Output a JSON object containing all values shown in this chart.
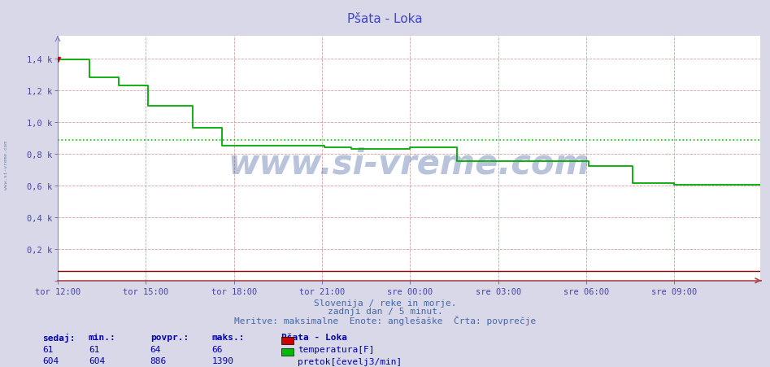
{
  "title": "Pšata - Loka",
  "title_color": "#4444cc",
  "bg_color": "#d8d8e8",
  "plot_bg_color": "#ffffff",
  "grid_color_dashed": "#cc8888",
  "grid_color_v": "#cc8888",
  "axis_color": "#8888cc",
  "tick_color": "#4444aa",
  "border_color": "#8888cc",
  "watermark": "www.si-vreme.com",
  "watermark_color": "#1a3a8a",
  "subtitle1": "Slovenija / reke in morje.",
  "subtitle2": "zadnji dan / 5 minut.",
  "subtitle3": "Meritve: maksimalne  Enote: anglešaške  Črta: povprečje",
  "subtitle_color": "#4466aa",
  "ylim": [
    0,
    1540
  ],
  "yticks": [
    0,
    200,
    400,
    600,
    800,
    1000,
    1200,
    1400
  ],
  "ytick_labels": [
    "",
    "0,2 k",
    "0,4 k",
    "0,6 k",
    "0,8 k",
    "1,0 k",
    "1,2 k",
    "1,4 k"
  ],
  "xtick_labels": [
    "tor 12:00",
    "tor 15:00",
    "tor 18:00",
    "tor 21:00",
    "sre 00:00",
    "sre 03:00",
    "sre 06:00",
    "sre 09:00"
  ],
  "xtick_positions": [
    0,
    36,
    72,
    108,
    144,
    180,
    216,
    252
  ],
  "total_points": 288,
  "avg_line_value": 886,
  "avg_line_color": "#00cc00",
  "temp_color": "#880000",
  "flow_color": "#00aa00",
  "flow_data": [
    [
      0,
      1390
    ],
    [
      13,
      1390
    ],
    [
      13,
      1280
    ],
    [
      25,
      1280
    ],
    [
      25,
      1230
    ],
    [
      37,
      1230
    ],
    [
      37,
      1100
    ],
    [
      55,
      1100
    ],
    [
      55,
      960
    ],
    [
      67,
      960
    ],
    [
      67,
      850
    ],
    [
      109,
      850
    ],
    [
      109,
      840
    ],
    [
      115,
      840
    ],
    [
      115,
      840
    ],
    [
      120,
      840
    ],
    [
      120,
      830
    ],
    [
      144,
      830
    ],
    [
      144,
      840
    ],
    [
      163,
      840
    ],
    [
      163,
      750
    ],
    [
      217,
      750
    ],
    [
      217,
      720
    ],
    [
      235,
      720
    ],
    [
      235,
      615
    ],
    [
      252,
      615
    ],
    [
      252,
      604
    ],
    [
      287,
      604
    ]
  ],
  "temp_value": 61,
  "legend_title": "Pšata - Loka",
  "legend_items": [
    {
      "label": "temperatura[F]",
      "color": "#cc0000"
    },
    {
      "label": "pretok[čevelj3/min]",
      "color": "#00bb00"
    }
  ],
  "table_headers": [
    "sedaj:",
    "min.:",
    "povpr.:",
    "maks.:"
  ],
  "table_rows": [
    [
      61,
      61,
      64,
      66
    ],
    [
      604,
      604,
      886,
      1390
    ]
  ],
  "table_color": "#0000aa",
  "left_label": "www.si-vreme.com",
  "left_label_color": "#6688aa"
}
